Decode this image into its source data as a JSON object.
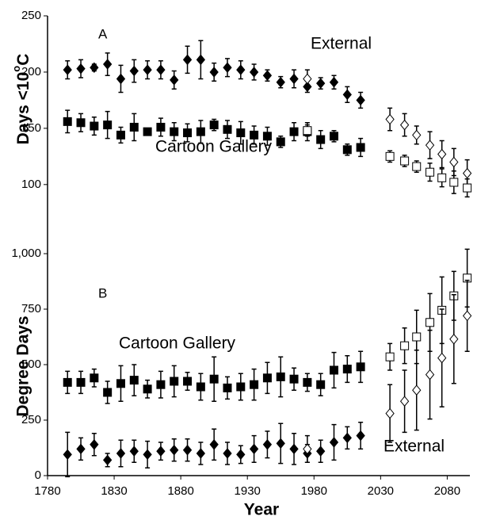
{
  "chart_data": [
    {
      "type": "scatter",
      "panel": "A",
      "annotations": [
        "External",
        "Cartoon Gallery"
      ],
      "ylabel": "Days <10",
      "ylabel_sup": "o",
      "ylabel_end": "C",
      "xlim": [
        1780,
        2097
      ],
      "ylim": [
        90,
        250
      ],
      "yticks": [
        100,
        150,
        200,
        250
      ],
      "series": [
        {
          "marker": "diamond",
          "color": "#000000",
          "hollow": false,
          "x": [
            1795,
            1805,
            1815,
            1825,
            1835,
            1845,
            1855,
            1865,
            1875,
            1885,
            1895,
            1905,
            1915,
            1925,
            1935,
            1945,
            1955,
            1965,
            1975,
            1985,
            1995,
            2005,
            2015
          ],
          "values": [
            202,
            203,
            204,
            207,
            194,
            201,
            202,
            202,
            193,
            211,
            211,
            200,
            204,
            202,
            200,
            197,
            191,
            194,
            187,
            190,
            191,
            180,
            175
          ],
          "errors": [
            8,
            8,
            3,
            10,
            12,
            10,
            8,
            8,
            8,
            12,
            17,
            8,
            8,
            8,
            7,
            5,
            5,
            8,
            5,
            5,
            6,
            7,
            7
          ]
        },
        {
          "marker": "diamond",
          "color": "#000000",
          "hollow": true,
          "x": [
            1975,
            2037,
            2048,
            2057,
            2067,
            2076,
            2085,
            2095
          ],
          "values": [
            194,
            158,
            153,
            144,
            135,
            127,
            120,
            110
          ],
          "errors": [
            8,
            10,
            10,
            8,
            12,
            12,
            12,
            12
          ]
        },
        {
          "marker": "square",
          "color": "#000000",
          "hollow": false,
          "x": [
            1795,
            1805,
            1815,
            1825,
            1835,
            1845,
            1855,
            1865,
            1875,
            1885,
            1895,
            1905,
            1915,
            1925,
            1935,
            1945,
            1955,
            1965,
            1975,
            1985,
            1995,
            2005,
            2015
          ],
          "values": [
            156,
            155,
            152,
            153,
            144,
            151,
            147,
            151,
            147,
            146,
            147,
            153,
            149,
            146,
            144,
            143,
            138,
            147,
            147,
            140,
            143,
            131,
            133
          ],
          "errors": [
            10,
            8,
            8,
            12,
            7,
            12,
            3,
            8,
            8,
            8,
            10,
            5,
            8,
            10,
            8,
            8,
            5,
            8,
            8,
            8,
            5,
            5,
            8
          ]
        },
        {
          "marker": "square",
          "color": "#000000",
          "hollow": true,
          "x": [
            1975,
            2037,
            2048,
            2057,
            2067,
            2076,
            2085,
            2095
          ],
          "values": [
            148,
            125,
            121,
            116,
            111,
            106,
            102,
            97
          ],
          "errors": [
            5,
            5,
            5,
            5,
            8,
            8,
            10,
            8
          ]
        }
      ]
    },
    {
      "type": "scatter",
      "panel": "B",
      "annotations": [
        "Cartoon Gallery",
        "External"
      ],
      "ylabel": "Degree Days",
      "xlabel": "Year",
      "xlim": [
        1780,
        2097
      ],
      "xticks": [
        1780,
        1830,
        1880,
        1930,
        1980,
        2030,
        2080
      ],
      "ylim": [
        0,
        1000
      ],
      "yticks": [
        0,
        250,
        500,
        750,
        {
          "value": 1000,
          "label": "1,000"
        }
      ],
      "series": [
        {
          "marker": "square",
          "color": "#000000",
          "hollow": false,
          "x": [
            1795,
            1805,
            1815,
            1825,
            1835,
            1845,
            1855,
            1865,
            1875,
            1885,
            1895,
            1905,
            1915,
            1925,
            1935,
            1945,
            1955,
            1965,
            1975,
            1985,
            1995,
            2005,
            2015
          ],
          "values": [
            420,
            420,
            440,
            375,
            415,
            430,
            390,
            410,
            425,
            425,
            400,
            435,
            395,
            400,
            410,
            440,
            445,
            435,
            420,
            410,
            475,
            480,
            490
          ],
          "errors": [
            50,
            50,
            40,
            50,
            80,
            70,
            40,
            60,
            70,
            40,
            60,
            100,
            50,
            60,
            70,
            70,
            90,
            50,
            40,
            50,
            80,
            60,
            70
          ]
        },
        {
          "marker": "square",
          "color": "#000000",
          "hollow": true,
          "x": [
            2037,
            2048,
            2057,
            2067,
            2076,
            2085,
            2095
          ],
          "values": [
            535,
            585,
            625,
            690,
            745,
            810,
            890
          ],
          "errors": [
            60,
            80,
            120,
            130,
            150,
            110,
            130
          ]
        },
        {
          "marker": "diamond",
          "color": "#000000",
          "hollow": false,
          "x": [
            1795,
            1805,
            1815,
            1825,
            1835,
            1845,
            1855,
            1865,
            1875,
            1885,
            1895,
            1905,
            1915,
            1925,
            1935,
            1945,
            1955,
            1965,
            1975,
            1985,
            1995,
            2005,
            2015
          ],
          "values": [
            95,
            120,
            140,
            70,
            100,
            110,
            95,
            110,
            115,
            115,
            100,
            140,
            100,
            95,
            120,
            140,
            145,
            120,
            100,
            110,
            150,
            170,
            180
          ],
          "errors": [
            100,
            50,
            50,
            30,
            60,
            50,
            60,
            40,
            50,
            50,
            50,
            70,
            50,
            40,
            60,
            60,
            90,
            70,
            40,
            50,
            80,
            50,
            60
          ]
        },
        {
          "marker": "diamond",
          "color": "#000000",
          "hollow": true,
          "x": [
            1975,
            2037,
            2048,
            2057,
            2067,
            2076,
            2085,
            2095
          ],
          "values": [
            120,
            280,
            335,
            385,
            455,
            530,
            615,
            720
          ],
          "errors": [
            60,
            130,
            140,
            180,
            200,
            220,
            200,
            160
          ]
        }
      ]
    }
  ]
}
